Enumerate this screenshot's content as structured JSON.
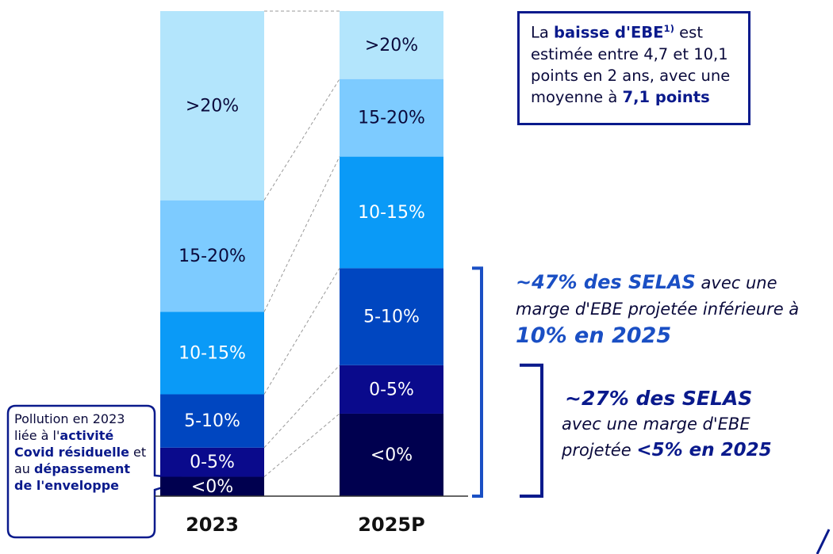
{
  "chart_data": {
    "type": "stacked_bar",
    "categories": [
      "2023",
      "2025P"
    ],
    "series": [
      {
        "name": "<0%",
        "color": "#00004f",
        "label_color": "#ffffff",
        "values": [
          4,
          17
        ]
      },
      {
        "name": "0-5%",
        "color": "#0a0a8c",
        "label_color": "#ffffff",
        "values": [
          6,
          10
        ]
      },
      {
        "name": "5-10%",
        "color": "#0046c0",
        "label_color": "#ffffff",
        "values": [
          11,
          20
        ]
      },
      {
        "name": "10-15%",
        "color": "#0a9af7",
        "label_color": "#ffffff",
        "values": [
          17,
          23
        ]
      },
      {
        "name": "15-20%",
        "color": "#7dcbff",
        "label_color": "#0a0a3c",
        "values": [
          23,
          16
        ]
      },
      {
        "name": ">20%",
        "color": "#b3e5fc",
        "label_color": "#0a0a3c",
        "values": [
          39,
          14
        ]
      }
    ],
    "annotations": {
      "box": [
        {
          "text": "La "
        },
        {
          "text": "baisse d'EBE",
          "style": "bold"
        },
        {
          "text": "1)",
          "style": "sup"
        },
        {
          "text": " est estimée entre 4,7 et 10,1 points en 2 ans, avec une moyenne à "
        },
        {
          "text": "7,1 points",
          "style": "bold"
        }
      ],
      "below_10": [
        {
          "text": "~47% des SELAS",
          "style": "bold"
        },
        {
          "text": " avec une marge d'EBE projetée inférieure à "
        },
        {
          "text": "10% en 2025",
          "style": "big"
        }
      ],
      "below_5": [
        {
          "text": "~27% des SELAS",
          "style": "big"
        },
        {
          "text": " avec une marge d'EBE projetée "
        },
        {
          "text": "<5% en 2025",
          "style": "bold"
        }
      ],
      "callout": [
        {
          "text": "Pollution en 2023 liée à l'"
        },
        {
          "text": "activité Covid résiduelle",
          "style": "bold"
        },
        {
          "text": " et au "
        },
        {
          "text": "dépassement de l'enveloppe",
          "style": "bold"
        }
      ]
    }
  }
}
